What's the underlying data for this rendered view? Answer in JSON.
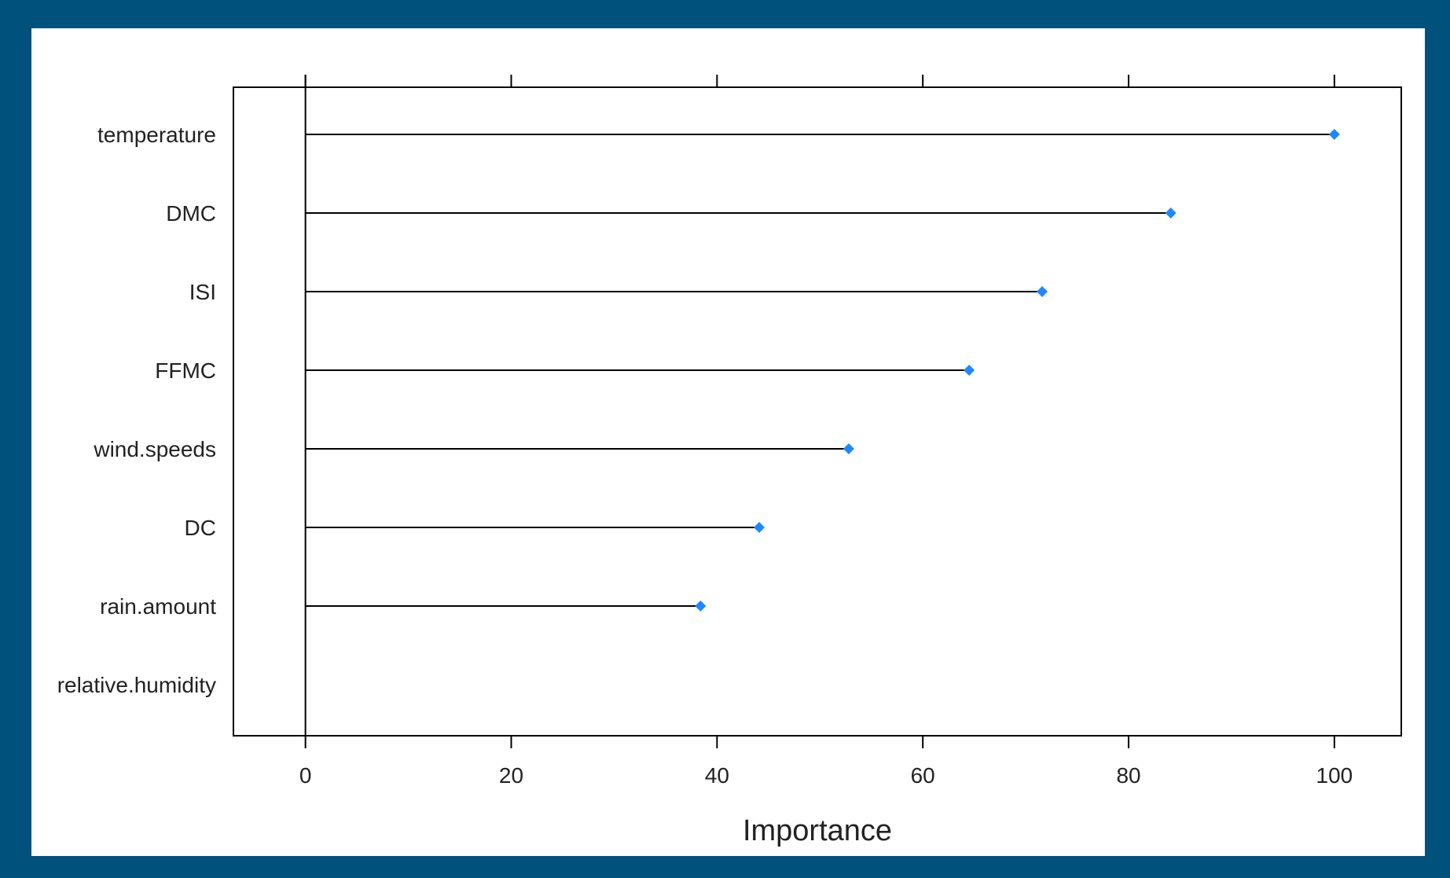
{
  "chart_data": {
    "type": "lollipop",
    "xlabel": "Importance",
    "ylabel": "",
    "xlim": [
      -7,
      106.5
    ],
    "xticks": [
      0,
      20,
      40,
      60,
      80,
      100
    ],
    "xtick_labels": [
      "0",
      "20",
      "40",
      "60",
      "80",
      "100"
    ],
    "grid": false,
    "colors": {
      "point": "#1e88ff",
      "line": "#000000",
      "frame": "#00527c"
    },
    "categories": [
      "temperature",
      "DMC",
      "ISI",
      "FFMC",
      "wind.speeds",
      "DC",
      "rain.amount",
      "relative.humidity"
    ],
    "values": [
      100,
      84.1,
      71.6,
      64.5,
      52.8,
      44.1,
      38.4,
      0
    ]
  }
}
